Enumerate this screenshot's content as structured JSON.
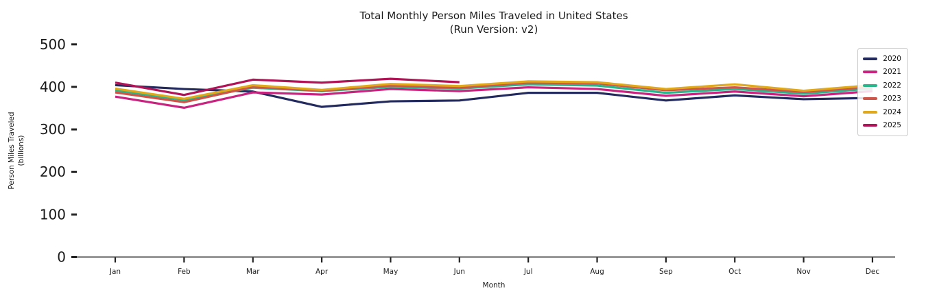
{
  "title": {
    "line1": "Total Monthly Person Miles Traveled in United States",
    "line2": "(Run Version: v2)"
  },
  "chart_data": {
    "type": "line",
    "x": [
      "Jan",
      "Feb",
      "Mar",
      "Apr",
      "May",
      "Jun",
      "Jul",
      "Aug",
      "Sep",
      "Oct",
      "Nov",
      "Dec"
    ],
    "xlabel": "Month",
    "ylabel_line1": "Person Miles Traveled",
    "ylabel_line2": "(billions)",
    "ylim": [
      0,
      500
    ],
    "yticks": [
      0,
      100,
      200,
      300,
      400,
      500
    ],
    "grid": false,
    "legend_position": "upper right",
    "series": [
      {
        "name": "2020",
        "color": "#222a5e",
        "values": [
          404,
          395,
          389,
          353,
          366,
          368,
          386,
          386,
          368,
          380,
          371,
          374
        ]
      },
      {
        "name": "2021",
        "color": "#c7247f",
        "values": [
          377,
          351,
          387,
          382,
          395,
          390,
          399,
          395,
          379,
          389,
          378,
          390
        ]
      },
      {
        "name": "2022",
        "color": "#28b78d",
        "values": [
          392,
          369,
          398,
          390,
          400,
          396,
          406,
          403,
          386,
          395,
          384,
          396
        ]
      },
      {
        "name": "2023",
        "color": "#cd5549",
        "values": [
          387,
          364,
          400,
          391,
          403,
          398,
          410,
          408,
          392,
          399,
          388,
          400
        ]
      },
      {
        "name": "2024",
        "color": "#e0a91d",
        "values": [
          396,
          372,
          404,
          393,
          407,
          402,
          413,
          411,
          395,
          406,
          391,
          404
        ]
      },
      {
        "name": "2025",
        "color": "#b01356",
        "values": [
          410,
          381,
          417,
          410,
          419,
          411,
          null,
          null,
          null,
          null,
          null,
          null
        ]
      }
    ]
  }
}
